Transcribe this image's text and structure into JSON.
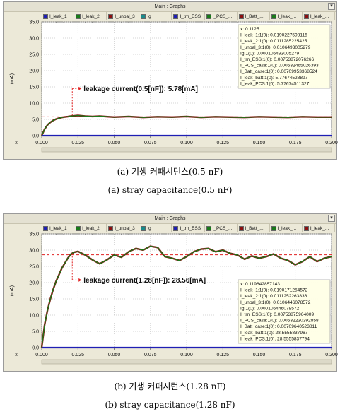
{
  "window_title": "Main : Graphs",
  "legend": [
    {
      "label": "I_leak_1",
      "color": "#1f1fb4"
    },
    {
      "label": "I_leak_2",
      "color": "#1a7a1a"
    },
    {
      "label": "I_unbal_3",
      "color": "#8b1010"
    },
    {
      "label": "Ig",
      "color": "#1a8a8a"
    },
    {
      "label": "I_trn_ESS",
      "color": "#1f1fb4"
    },
    {
      "label": "I_PCS_...",
      "color": "#1a7a1a"
    },
    {
      "label": "I_Batt_...",
      "color": "#8b1010"
    },
    {
      "label": "I_leak_...",
      "color": "#1a7a1a"
    },
    {
      "label": "I_leak_...",
      "color": "#8b1010"
    }
  ],
  "captions": {
    "a_korean": "(a)  기생 커패시턴스(0.5  nF)",
    "a_english": "(a)  stray  capacitance(0.5  nF)",
    "b_korean": "(b)  기생 커패시턴스(1.28  nF)",
    "b_english": "(b)  stray  capacitance(1.28  nF)"
  },
  "chart_data": [
    {
      "type": "line",
      "ylabel": "(mA)",
      "xlabel": "x",
      "xlim": [
        0.0,
        0.2
      ],
      "ylim": [
        0.0,
        35.0
      ],
      "xticks": [
        "0.000",
        "0.025",
        "0.050",
        "0.075",
        "0.100",
        "0.125",
        "0.150",
        "0.175",
        "0.200"
      ],
      "yticks": [
        "0.0",
        "5.0",
        "10.0",
        "15.0",
        "20.0",
        "25.0",
        "30.0",
        "35.0"
      ],
      "reference_line": 5.78,
      "annotation": "leakage current(0.5[nF]): 5.78[mA]",
      "annotation_x": 0.025,
      "annotation_y": 14.5,
      "series": [
        {
          "name": "I_leak_batt",
          "color": "#1a7a1a",
          "x": [
            0.0,
            0.002,
            0.004,
            0.006,
            0.008,
            0.01,
            0.012,
            0.014,
            0.016,
            0.018,
            0.02,
            0.025,
            0.03,
            0.035,
            0.04,
            0.05,
            0.06,
            0.07,
            0.08,
            0.09,
            0.1,
            0.11,
            0.12,
            0.13,
            0.14,
            0.15,
            0.16,
            0.17,
            0.18,
            0.19,
            0.2
          ],
          "y": [
            0.0,
            2.0,
            3.3,
            4.1,
            4.7,
            5.1,
            5.4,
            5.6,
            5.75,
            5.85,
            6.0,
            6.2,
            6.0,
            5.9,
            6.0,
            5.7,
            5.9,
            5.6,
            5.8,
            5.7,
            5.9,
            5.6,
            5.8,
            5.7,
            5.6,
            5.8,
            5.7,
            5.6,
            5.8,
            5.7,
            5.7
          ]
        },
        {
          "name": "I_leak_1",
          "color": "#1f1fb4",
          "x": [
            0.0,
            0.2
          ],
          "y": [
            0.0,
            0.0
          ]
        }
      ],
      "readout": [
        "x: 0.1125",
        "I_leak_1:1(0): 0.0190227598115",
        "I_leak_2:1(0): 0.0111285225425",
        "I_unbal_3:1(0): 0.0106493005279",
        "Ig:1(0): 0.000106493005279",
        "I_trn_ESS:1(0): 0.00753872076266",
        "I_PCS_case:1(0): 0.00532465026393",
        "I_Batt_case:1(0): 0.00709953368524",
        "I_leak_batt:1(0): 5.77674528897",
        "I_leak_PCS:1(0): 5.77674511327"
      ]
    },
    {
      "type": "line",
      "ylabel": "(mA)",
      "xlabel": "x",
      "xlim": [
        0.0,
        0.2
      ],
      "ylim": [
        0.0,
        35.0
      ],
      "xticks": [
        "0.000",
        "0.025",
        "0.050",
        "0.075",
        "0.100",
        "0.125",
        "0.150",
        "0.175",
        "0.200"
      ],
      "yticks": [
        "0.0",
        "5.0",
        "10.0",
        "15.0",
        "20.0",
        "25.0",
        "30.0",
        "35.0"
      ],
      "reference_line": 28.56,
      "annotation": "leakage current(1.28[nF]): 28.56[mA]",
      "annotation_x": 0.025,
      "annotation_y": 20.8,
      "series": [
        {
          "name": "I_leak_batt",
          "color": "#1a7a1a",
          "x": [
            0.0,
            0.002,
            0.004,
            0.006,
            0.008,
            0.01,
            0.012,
            0.014,
            0.016,
            0.018,
            0.02,
            0.022,
            0.025,
            0.03,
            0.035,
            0.04,
            0.045,
            0.05,
            0.055,
            0.06,
            0.065,
            0.07,
            0.075,
            0.08,
            0.085,
            0.09,
            0.095,
            0.1,
            0.105,
            0.11,
            0.115,
            0.12,
            0.125,
            0.13,
            0.135,
            0.14,
            0.145,
            0.15,
            0.155,
            0.16,
            0.165,
            0.17,
            0.175,
            0.18,
            0.185,
            0.19,
            0.195,
            0.2
          ],
          "y": [
            0.0,
            7.0,
            11.5,
            15.0,
            18.0,
            20.5,
            22.5,
            24.5,
            26.0,
            27.5,
            28.7,
            29.3,
            29.6,
            28.5,
            27.0,
            25.8,
            27.0,
            28.5,
            27.8,
            29.5,
            30.5,
            30.0,
            31.2,
            30.8,
            28.0,
            27.5,
            26.8,
            28.0,
            29.5,
            30.3,
            30.5,
            29.5,
            30.0,
            29.0,
            28.5,
            27.2,
            28.2,
            27.5,
            28.0,
            28.8,
            27.5,
            26.8,
            25.5,
            26.5,
            28.0,
            26.5,
            27.5,
            28.0
          ]
        },
        {
          "name": "I_leak_1",
          "color": "#1f1fb4",
          "x": [
            0.0,
            0.2
          ],
          "y": [
            0.0,
            0.0
          ]
        }
      ],
      "readout": [
        "x: 0.119642857143",
        "I_leak_1:1(0): 0.0190171254572",
        "I_leak_2:1(0): 0.0111252263836",
        "I_unbal_3:1(0): 0.0106446078572",
        "Ig:1(0): 0.000106446078572",
        "I_trn_ESS:1(0): 0.00753875964009",
        "I_PCS_case:1(0): 0.00532230392858",
        "I_Batt_case:1(0): 0.00709640523811",
        "I_leak_batt:1(0): 28.5555837967",
        "I_leak_PCS:1(0): 28.5555837794"
      ]
    }
  ]
}
